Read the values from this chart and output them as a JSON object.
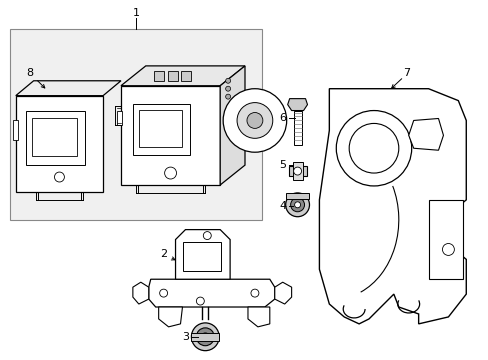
{
  "background_color": "#ffffff",
  "line_color": "#000000",
  "gray_fill": "#e8e8e8",
  "light_fill": "#f0f0f0"
}
